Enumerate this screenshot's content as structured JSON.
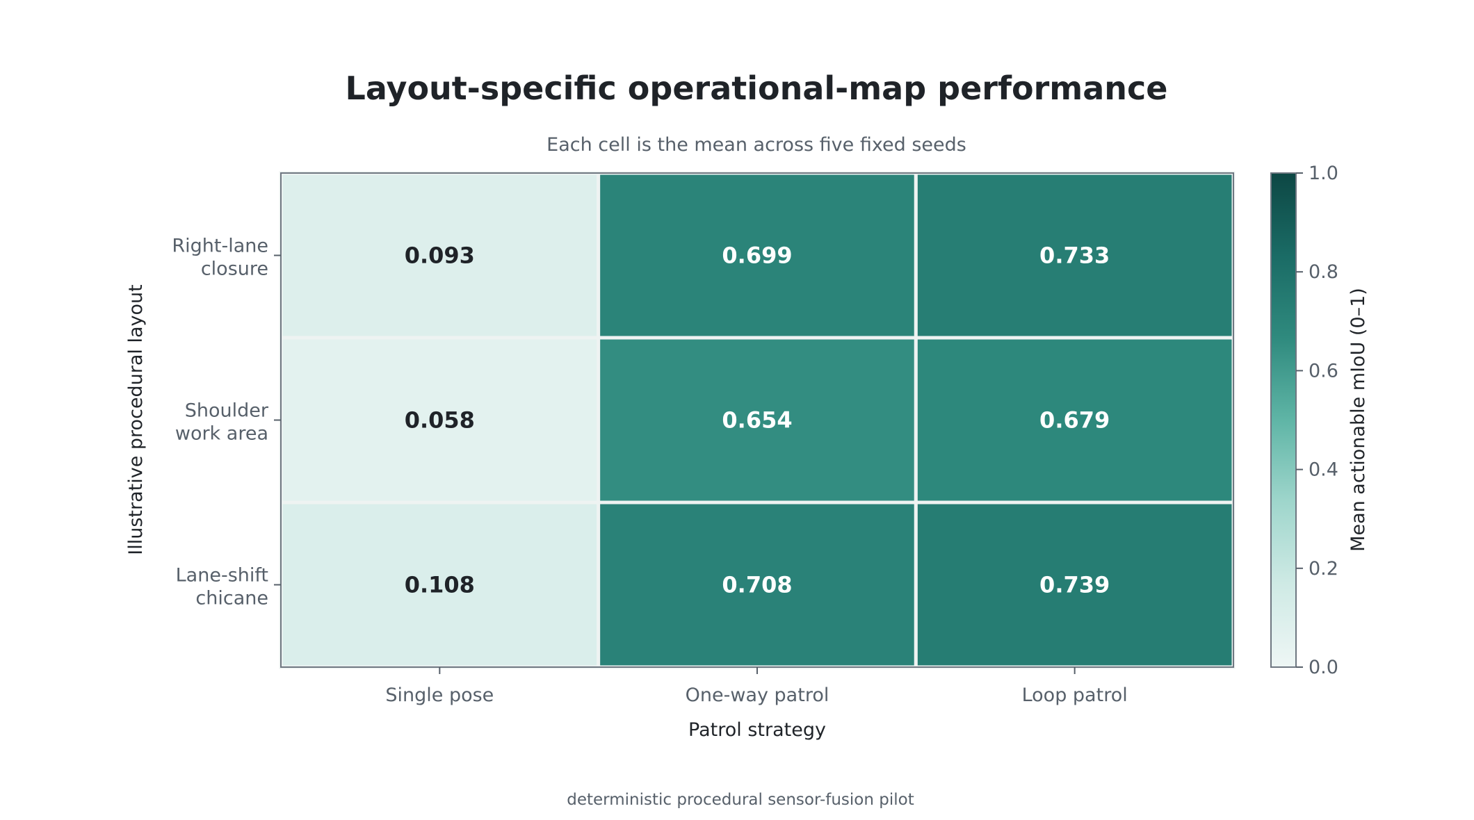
{
  "chart_data": {
    "type": "heatmap",
    "title": "Layout-specific operational-map performance",
    "subtitle": "Each cell is the mean across five fixed seeds",
    "xlabel": "Patrol strategy",
    "ylabel": "Illustrative procedural layout",
    "x_categories": [
      "Single pose",
      "One-way patrol",
      "Loop patrol"
    ],
    "y_categories": [
      [
        "Right-lane",
        "closure"
      ],
      [
        "Shoulder",
        "work area"
      ],
      [
        "Lane-shift",
        "chicane"
      ]
    ],
    "values": [
      [
        0.093,
        0.699,
        0.733
      ],
      [
        0.058,
        0.654,
        0.679
      ],
      [
        0.108,
        0.708,
        0.739
      ]
    ],
    "value_labels": [
      [
        "0.093",
        "0.699",
        "0.733"
      ],
      [
        "0.058",
        "0.654",
        "0.679"
      ],
      [
        "0.108",
        "0.708",
        "0.739"
      ]
    ],
    "colorbar": {
      "label": "Mean actionable mIoU (0–1)",
      "range": [
        0.0,
        1.0
      ],
      "ticks": [
        "0.0",
        "0.2",
        "0.4",
        "0.6",
        "0.8",
        "1.0"
      ],
      "colormap": [
        "#eef6f5",
        "#cfeae5",
        "#9fd6cc",
        "#5fb5a6",
        "#2f8a7e",
        "#1a6b65",
        "#0d4744"
      ]
    },
    "footer": "deterministic procedural sensor-fusion pilot",
    "grid": false
  }
}
